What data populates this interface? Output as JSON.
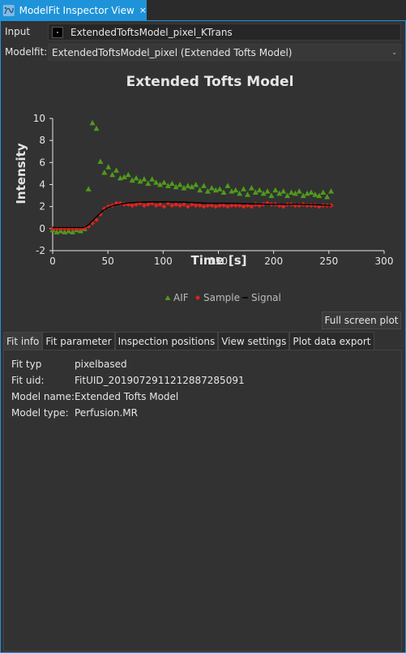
{
  "window": {
    "tab_title": "ModelFit Inspector View",
    "close_glyph": "×",
    "icon": "modelfit-app-icon"
  },
  "input": {
    "label": "Input",
    "value": "ExtendedToftsModel_pixel_KTrans"
  },
  "modelfit": {
    "label": "Modelfit:",
    "value": "ExtendedToftsModel_pixel (Extended Tofts Model)",
    "arrow_glyph": "⌄"
  },
  "colors": {
    "accent": "#1e93d9",
    "aif": "#4f9a1c",
    "sample": "#e0221f",
    "signal": "#000000",
    "plot_background": "#323232",
    "axis": "#e6e6e6"
  },
  "chart_data": {
    "type": "scatter",
    "title": "Extended Tofts Model",
    "xlabel": "Time [s]",
    "ylabel": "Intensity",
    "xlim": [
      0,
      300
    ],
    "ylim": [
      -2,
      10
    ],
    "x_ticks": [
      "0",
      "50",
      "100",
      "150",
      "200",
      "250",
      "300"
    ],
    "y_ticks": [
      "-2",
      "0",
      "2",
      "4",
      "6",
      "8",
      "10"
    ],
    "legend_position": "bottom",
    "grid": false,
    "series": [
      {
        "name": "AIF",
        "marker": "triangle",
        "x": [
          0,
          3.6,
          7.2,
          10.8,
          14.4,
          18,
          21.6,
          25.2,
          28.8,
          32.4,
          36,
          39.6,
          43.2,
          46.8,
          50.4,
          54,
          57.6,
          61.2,
          64.8,
          68.4,
          72,
          75.6,
          79.2,
          82.8,
          86.4,
          90,
          93.6,
          97.2,
          100.8,
          104.4,
          108,
          111.6,
          115.2,
          118.8,
          122.4,
          126,
          129.6,
          133.2,
          136.8,
          140.4,
          144,
          147.6,
          151.2,
          154.8,
          158.4,
          162,
          165.6,
          169.2,
          172.8,
          176.4,
          180,
          183.6,
          187.2,
          190.8,
          194.4,
          198,
          201.6,
          205.2,
          208.8,
          212.4,
          216,
          219.6,
          223.2,
          226.8,
          230.4,
          234,
          237.6,
          241.2,
          244.8,
          248.4,
          252
        ],
        "y": [
          -0.1,
          -0.3,
          -0.2,
          -0.3,
          -0.2,
          -0.3,
          -0.1,
          -0.2,
          0.0,
          3.6,
          9.6,
          9.1,
          6.1,
          5.1,
          5.6,
          4.9,
          5.3,
          4.6,
          4.7,
          4.9,
          4.4,
          4.6,
          4.3,
          4.5,
          4.1,
          4.5,
          4.2,
          4.0,
          4.2,
          3.9,
          4.1,
          3.8,
          4.0,
          3.7,
          3.9,
          3.8,
          4.0,
          3.5,
          3.9,
          3.4,
          3.7,
          3.5,
          3.6,
          3.3,
          3.9,
          3.4,
          3.5,
          3.2,
          3.6,
          3.1,
          3.7,
          3.3,
          3.5,
          3.2,
          3.4,
          3.0,
          3.5,
          3.2,
          3.4,
          3.0,
          3.3,
          3.2,
          3.4,
          3.0,
          3.2,
          3.3,
          3.1,
          3.0,
          3.3,
          2.9,
          3.4
        ]
      },
      {
        "name": "Sample",
        "marker": "diamond",
        "x": [
          0,
          3.6,
          7.2,
          10.8,
          14.4,
          18,
          21.6,
          25.2,
          28.8,
          32.4,
          36,
          39.6,
          43.2,
          46.8,
          50.4,
          54,
          57.6,
          61.2,
          64.8,
          68.4,
          72,
          75.6,
          79.2,
          82.8,
          86.4,
          90,
          93.6,
          97.2,
          100.8,
          104.4,
          108,
          111.6,
          115.2,
          118.8,
          122.4,
          126,
          129.6,
          133.2,
          136.8,
          140.4,
          144,
          147.6,
          151.2,
          154.8,
          158.4,
          162,
          165.6,
          169.2,
          172.8,
          176.4,
          180,
          183.6,
          187.2,
          190.8,
          194.4,
          198,
          201.6,
          205.2,
          208.8,
          212.4,
          216,
          219.6,
          223.2,
          226.8,
          230.4,
          234,
          237.6,
          241.2,
          244.8,
          248.4,
          252
        ],
        "y": [
          0.0,
          0.0,
          0.0,
          0.0,
          0.0,
          0.0,
          0.0,
          0.0,
          0.05,
          0.2,
          0.5,
          0.8,
          1.3,
          1.8,
          2.0,
          2.1,
          2.3,
          2.3,
          2.2,
          2.2,
          2.1,
          2.2,
          2.3,
          2.1,
          2.2,
          2.3,
          2.1,
          2.2,
          2.0,
          2.3,
          2.1,
          2.2,
          2.1,
          2.2,
          2.0,
          2.2,
          2.1,
          2.1,
          2.0,
          2.1,
          2.1,
          2.0,
          2.1,
          2.1,
          2.0,
          2.1,
          2.1,
          2.1,
          2.0,
          2.1,
          2.0,
          2.2,
          2.1,
          2.2,
          2.3,
          2.2,
          2.2,
          2.1,
          2.0,
          2.2,
          2.2,
          2.1,
          2.1,
          2.2,
          2.1,
          2.1,
          2.1,
          2.0,
          2.1,
          2.1,
          2.1
        ]
      },
      {
        "name": "Signal",
        "marker": "line",
        "x": [
          0,
          20,
          28,
          32,
          36,
          40,
          45,
          50,
          55,
          60,
          70,
          80,
          90,
          100,
          120,
          140,
          160,
          180,
          200,
          220,
          240,
          252
        ],
        "y": [
          0.1,
          0.1,
          0.1,
          0.3,
          0.7,
          1.1,
          1.6,
          1.9,
          2.1,
          2.2,
          2.35,
          2.4,
          2.42,
          2.43,
          2.4,
          2.3,
          2.3,
          2.25,
          2.2,
          2.2,
          2.15,
          2.1
        ]
      }
    ]
  },
  "fullscreen_button": {
    "label": "Full screen plot"
  },
  "tabs": [
    {
      "label": "Fit info",
      "active": true
    },
    {
      "label": "Fit parameter",
      "active": false
    },
    {
      "label": "Inspection positions",
      "active": false
    },
    {
      "label": "View settings",
      "active": false
    },
    {
      "label": "Plot data export",
      "active": false
    }
  ],
  "fit_info": {
    "rows": [
      {
        "label": "Fit typ",
        "value": "pixelbased"
      },
      {
        "label": "Fit uid:",
        "value": "FitUID_20190729112128872850​91"
      },
      {
        "label": "Model name:",
        "value": "Extended Tofts Model"
      },
      {
        "label": "Model type:",
        "value": "Perfusion.MR"
      }
    ]
  }
}
